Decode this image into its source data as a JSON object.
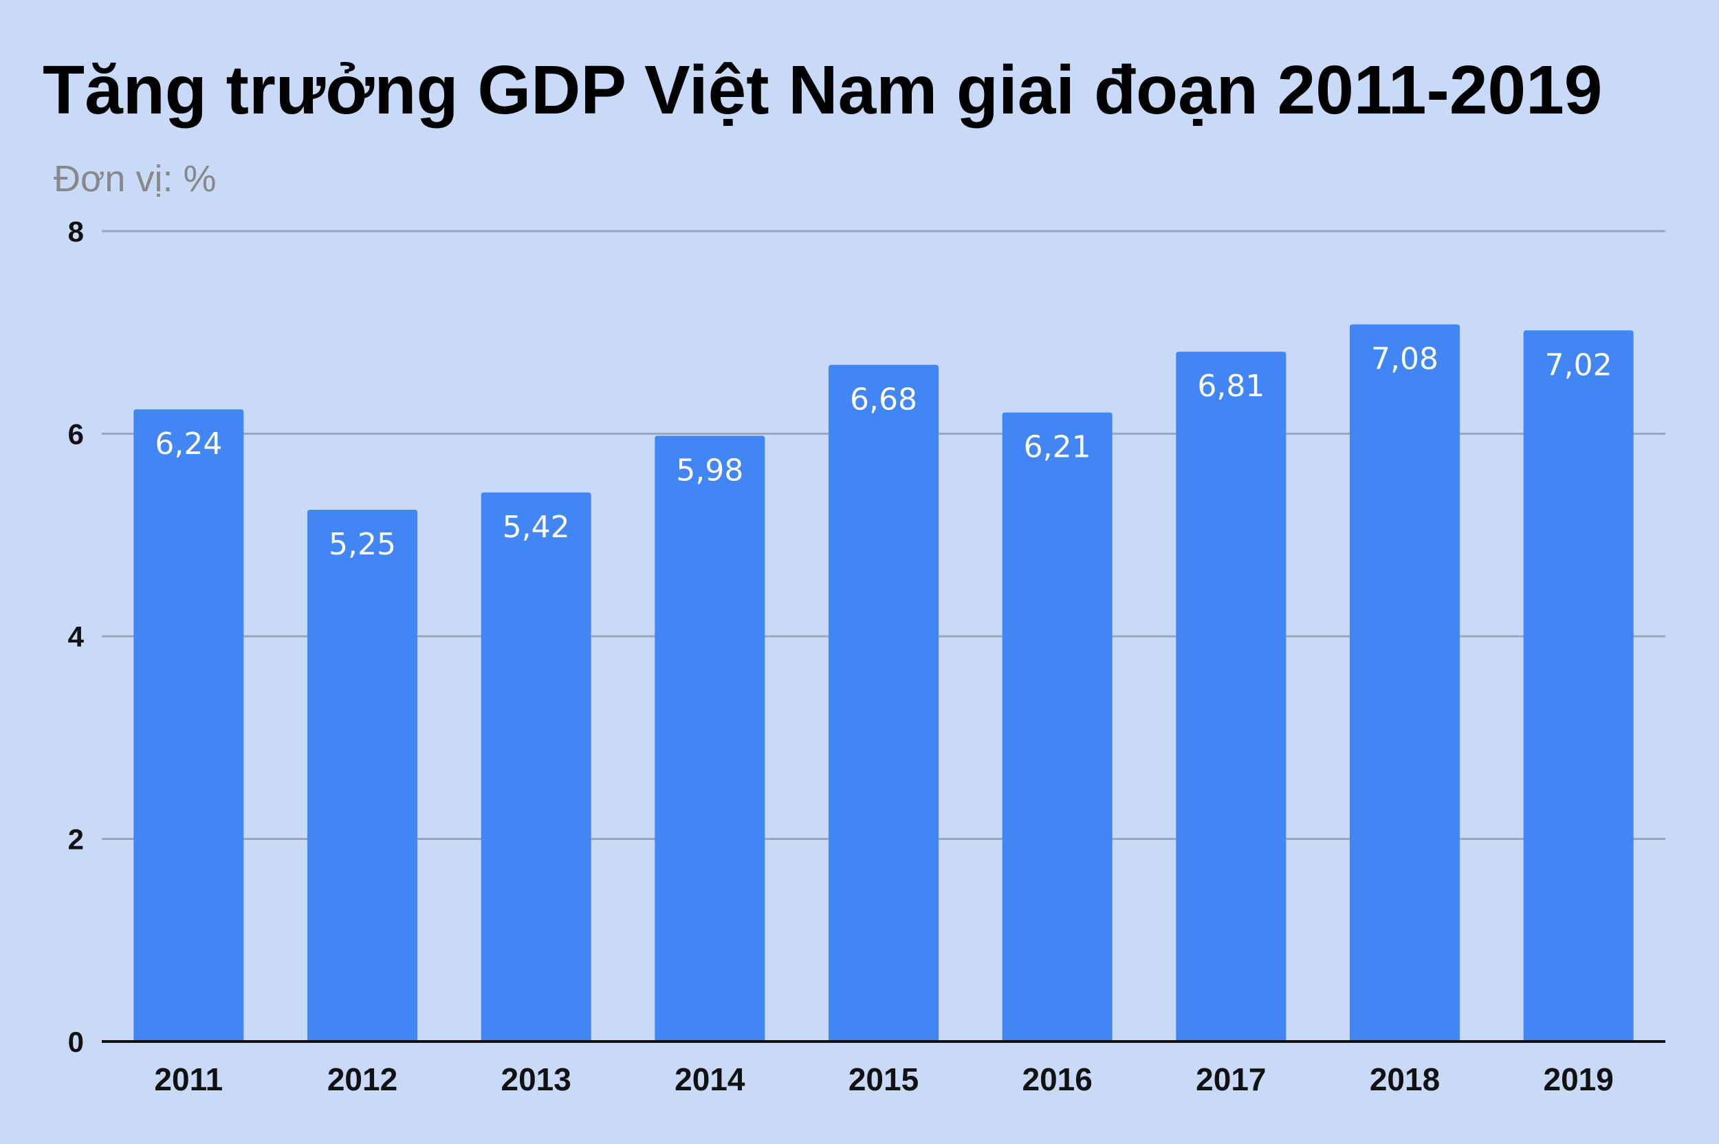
{
  "chart_data": {
    "type": "bar",
    "title": "Tăng trưởng GDP Việt Nam giai đoạn 2011-2019",
    "subtitle": "Đơn vị: %",
    "categories": [
      "2011",
      "2012",
      "2013",
      "2014",
      "2015",
      "2016",
      "2017",
      "2018",
      "2019"
    ],
    "values": [
      6.24,
      5.25,
      5.42,
      5.98,
      6.68,
      6.21,
      6.81,
      7.08,
      7.02
    ],
    "data_labels": [
      "6,24",
      "5,25",
      "5,42",
      "5,98",
      "6,68",
      "6,21",
      "6,81",
      "7,08",
      "7,02"
    ],
    "ylim": [
      0,
      8
    ],
    "yticks": [
      0,
      2,
      4,
      6,
      8
    ],
    "ytick_labels": [
      "0",
      "2",
      "4",
      "6",
      "8"
    ],
    "grid": true,
    "legend": "none",
    "colors": {
      "background": "#c9daf8",
      "bar": "#4285f4",
      "grid": "#9aa7b8",
      "axis": "#111111"
    }
  }
}
